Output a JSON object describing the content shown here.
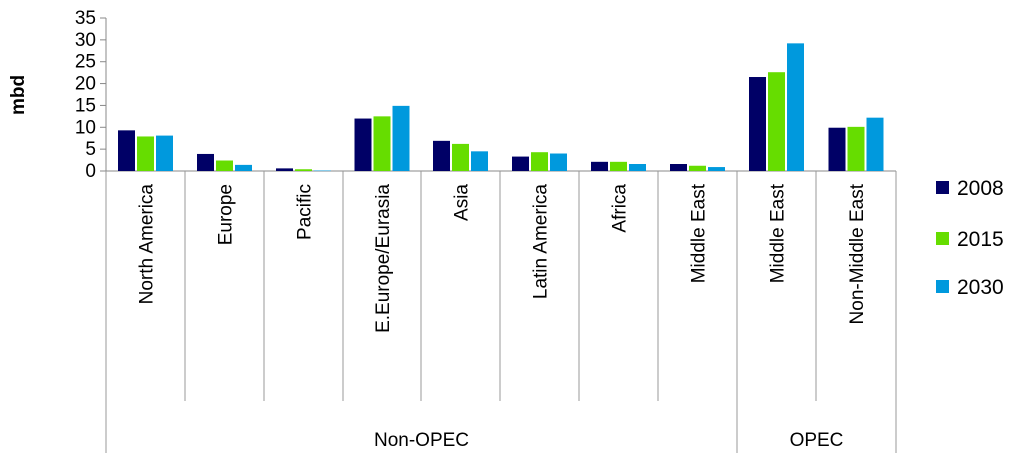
{
  "chart_data": {
    "type": "bar",
    "ylabel": "mbd",
    "xlabel": "",
    "title": "",
    "ylim": [
      0,
      35
    ],
    "yticks": [
      0,
      5,
      10,
      15,
      20,
      25,
      30,
      35
    ],
    "categories": [
      "North America",
      "Europe",
      "Pacific",
      "E.Europe/Eurasia",
      "Asia",
      "Latin America",
      "Africa",
      "Middle East",
      "Middle East",
      "Non-Middle East"
    ],
    "groups": [
      {
        "name": "Non-OPEC",
        "count": 8
      },
      {
        "name": "OPEC",
        "count": 2
      }
    ],
    "series": [
      {
        "name": "2008",
        "color": "#000066",
        "values": [
          9.3,
          3.9,
          0.6,
          12.0,
          6.9,
          3.3,
          2.1,
          1.6,
          21.5,
          9.9
        ]
      },
      {
        "name": "2015",
        "color": "#66DD00",
        "values": [
          7.9,
          2.4,
          0.4,
          12.5,
          6.2,
          4.3,
          2.1,
          1.2,
          22.6,
          10.1
        ]
      },
      {
        "name": "2030",
        "color": "#0099DD",
        "values": [
          8.1,
          1.4,
          0.1,
          14.9,
          4.5,
          4.0,
          1.6,
          0.9,
          29.2,
          12.2
        ]
      }
    ],
    "legend_position": "right",
    "grid": false
  }
}
